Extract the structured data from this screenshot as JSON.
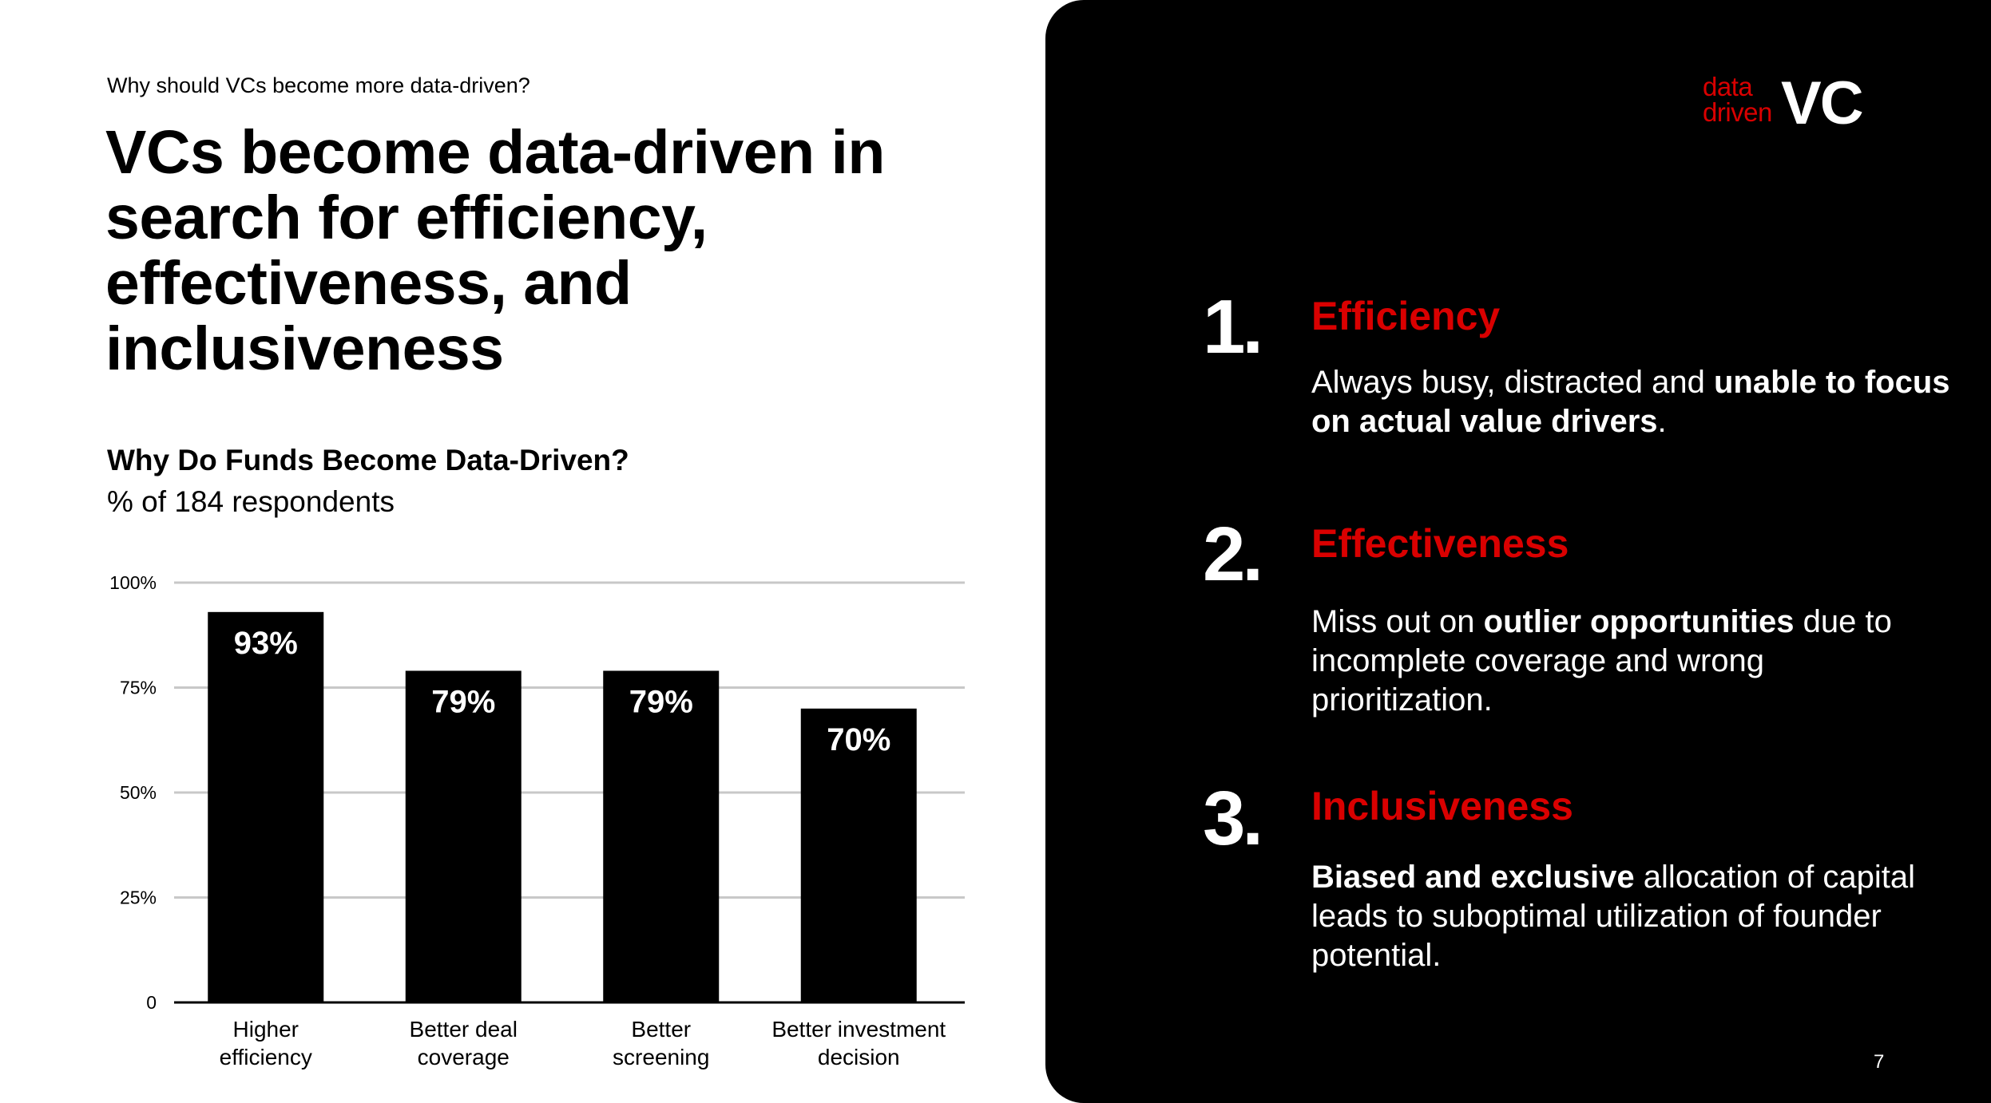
{
  "slide": {
    "kicker": "Why should VCs become more data-driven?",
    "title": "VCs become data-driven in search for efficiency, effectiveness, and inclusiveness",
    "page_number": "7"
  },
  "logo": {
    "line1": "data",
    "line2": "driven",
    "mark": "VC"
  },
  "colors": {
    "accent": "#d90000",
    "panel": "#000000",
    "bar": "#000000",
    "grid": "#c8c8c8"
  },
  "chart_data": {
    "type": "bar",
    "title": "Why Do Funds Become Data-Driven?",
    "subtitle": "% of 184 respondents",
    "categories": [
      "Higher efficiency",
      "Better deal coverage",
      "Better screening",
      "Better investment decision"
    ],
    "category_lines": [
      [
        "Higher",
        "efficiency"
      ],
      [
        "Better deal",
        "coverage"
      ],
      [
        "Better",
        "screening"
      ],
      [
        "Better investment",
        "decision"
      ]
    ],
    "values": [
      93,
      79,
      79,
      70
    ],
    "data_labels": [
      "93%",
      "79%",
      "79%",
      "70%"
    ],
    "yticks": [
      0,
      25,
      50,
      75,
      100
    ],
    "ytick_labels": [
      "0",
      "25%",
      "50%",
      "75%",
      "100%"
    ],
    "ylim": [
      0,
      100
    ],
    "grid": true,
    "xlabel": "",
    "ylabel": ""
  },
  "points": [
    {
      "number": "1.",
      "heading": "Efficiency",
      "body": [
        {
          "t": "Always busy, distracted and ",
          "b": false
        },
        {
          "t": "unable to focus on actual value drivers",
          "b": true
        },
        {
          "t": ".",
          "b": false
        }
      ]
    },
    {
      "number": "2.",
      "heading": "Effectiveness",
      "body": [
        {
          "t": "Miss out on ",
          "b": false
        },
        {
          "t": "outlier opportunities",
          "b": true
        },
        {
          "t": " due to incomplete coverage and wrong prioritization.",
          "b": false
        }
      ]
    },
    {
      "number": "3.",
      "heading": "Inclusiveness",
      "body": [
        {
          "t": "Biased and exclusive",
          "b": true
        },
        {
          "t": " allocation of capital leads to suboptimal utilization of founder potential.",
          "b": false
        }
      ]
    }
  ]
}
